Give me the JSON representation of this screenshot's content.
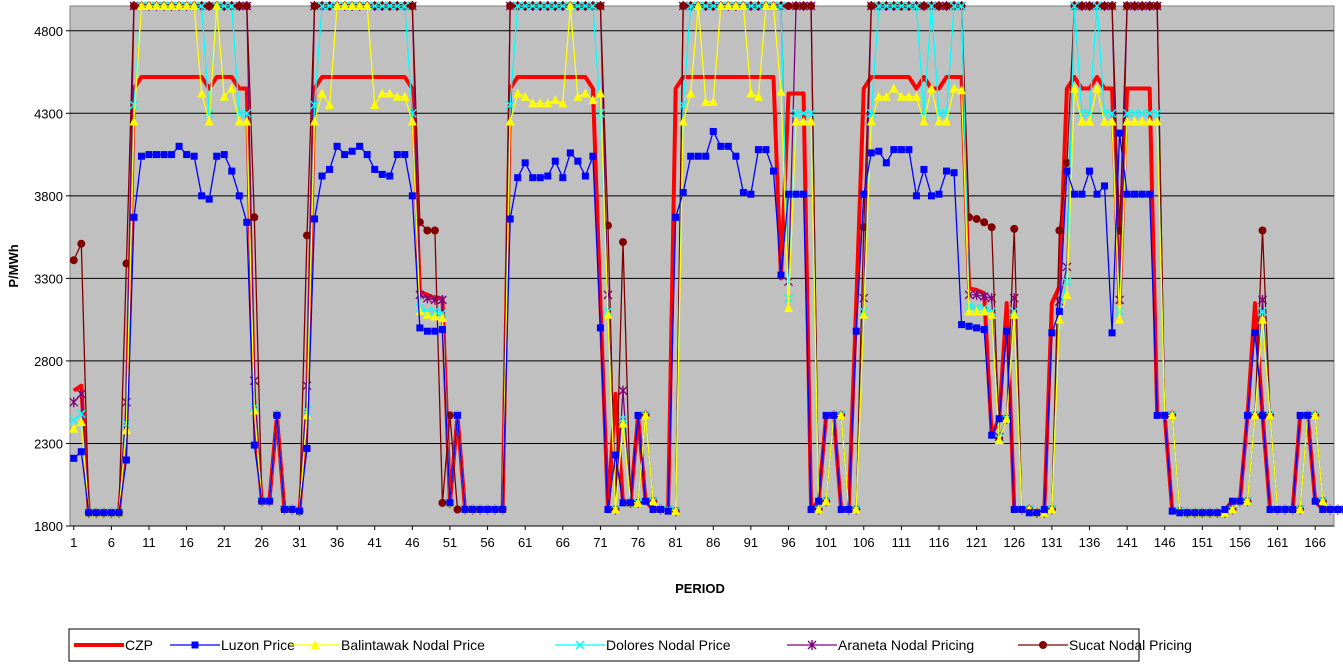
{
  "chart_data": {
    "type": "line",
    "title": "",
    "xlabel": "PERIOD",
    "ylabel": "P/MWh",
    "ylim": [
      1800,
      4950
    ],
    "yticks": [
      1800,
      2300,
      2800,
      3300,
      3800,
      4300,
      4800
    ],
    "xlim": [
      1,
      168
    ],
    "xticks": [
      1,
      6,
      11,
      16,
      21,
      26,
      31,
      36,
      41,
      46,
      51,
      56,
      61,
      66,
      71,
      76,
      81,
      86,
      91,
      96,
      101,
      106,
      111,
      116,
      121,
      126,
      131,
      136,
      141,
      146,
      151,
      156,
      161,
      166
    ],
    "grid": "horizontal",
    "background": "#c0c0c0",
    "legend_position": "bottom",
    "series": [
      {
        "name": "CZP",
        "color": "#ff0000",
        "marker": "none",
        "values": [
          2620,
          2650,
          1880,
          1880,
          1880,
          1880,
          1880,
          2400,
          4450,
          4520,
          4520,
          4520,
          4520,
          4520,
          4520,
          4520,
          4520,
          4520,
          4450,
          4520,
          4520,
          4520,
          4450,
          4450,
          2500,
          1950,
          1950,
          2470,
          1900,
          1900,
          1890,
          2500,
          4450,
          4520,
          4520,
          4520,
          4520,
          4520,
          4520,
          4520,
          4520,
          4520,
          4520,
          4520,
          4520,
          4450,
          3220,
          3200,
          3180,
          3180,
          1940,
          2470,
          1900,
          1900,
          1900,
          1900,
          1900,
          1900,
          4450,
          4520,
          4520,
          4520,
          4520,
          4520,
          4520,
          4520,
          4520,
          4520,
          4520,
          4450,
          3150,
          1900,
          2600,
          1940,
          1940,
          2470,
          1950,
          1900,
          1900,
          1890,
          4450,
          4520,
          4520,
          4520,
          4520,
          4520,
          4520,
          4520,
          4520,
          4520,
          4520,
          4520,
          4520,
          4520,
          3300,
          4420,
          4420,
          4420,
          1900,
          1950,
          2470,
          2470,
          1900,
          1900,
          3150,
          4450,
          4520,
          4520,
          4520,
          4520,
          4520,
          4520,
          4450,
          4520,
          4450,
          4450,
          4520,
          4520,
          4520,
          3240,
          3230,
          3210,
          2350,
          2450,
          3150,
          1900,
          1900,
          1880,
          1880,
          1900,
          3150,
          3250,
          4450,
          4520,
          4450,
          4450,
          4520,
          4450,
          4450,
          3150,
          4450,
          4450,
          4450,
          4450,
          2470,
          2470,
          1890,
          1880,
          1880,
          1880,
          1880,
          1880,
          1880,
          1900,
          1950,
          1950,
          2470,
          3150,
          2470,
          1900,
          1900,
          1900,
          1900,
          2470,
          2470,
          1950,
          1900,
          1900,
          1900,
          1900
        ]
      },
      {
        "name": "Luzon Price",
        "color": "#0000ff",
        "marker": "square",
        "values": [
          2210,
          2250,
          1880,
          1880,
          1880,
          1880,
          1880,
          2200,
          3670,
          4040,
          4050,
          4050,
          4050,
          4050,
          4100,
          4050,
          4040,
          3800,
          3780,
          4040,
          4050,
          3950,
          3800,
          3640,
          2290,
          1950,
          1950,
          2470,
          1900,
          1900,
          1890,
          2270,
          3660,
          3920,
          3960,
          4100,
          4050,
          4070,
          4100,
          4050,
          3960,
          3930,
          3920,
          4050,
          4050,
          3800,
          3000,
          2980,
          2980,
          2990,
          1940,
          2470,
          1900,
          1900,
          1900,
          1900,
          1900,
          1900,
          3660,
          3910,
          4000,
          3910,
          3910,
          3920,
          4010,
          3910,
          4060,
          4010,
          3920,
          4040,
          3000,
          1900,
          2230,
          1940,
          1940,
          2470,
          1950,
          1900,
          1900,
          1890,
          3670,
          3820,
          4040,
          4040,
          4040,
          4190,
          4100,
          4100,
          4040,
          3820,
          3810,
          4080,
          4080,
          3950,
          3320,
          3810,
          3810,
          3810,
          1900,
          1950,
          2470,
          2470,
          1900,
          1900,
          2980,
          3810,
          4060,
          4070,
          4000,
          4080,
          4080,
          4080,
          3800,
          3960,
          3800,
          3810,
          3950,
          3940,
          3020,
          3010,
          3000,
          2990,
          2350,
          2450,
          2980,
          1900,
          1900,
          1880,
          1880,
          1900,
          2970,
          3100,
          3950,
          3810,
          3810,
          3950,
          3810,
          3860,
          2970,
          4180,
          3810,
          3810,
          3810,
          3810,
          2470,
          2470,
          1890,
          1880,
          1880,
          1880,
          1880,
          1880,
          1880,
          1900,
          1950,
          1950,
          2470,
          2970,
          2470,
          1900,
          1900,
          1900,
          1900,
          2470,
          2470,
          1950,
          1900,
          1900,
          1900,
          1900
        ]
      },
      {
        "name": "Balintawak Nodal Price",
        "color": "#ffff00",
        "marker": "triangle",
        "values": [
          2390,
          2430,
          1880,
          1880,
          1880,
          1880,
          1880,
          2380,
          4250,
          4950,
          4950,
          4950,
          4950,
          4950,
          4950,
          4950,
          4950,
          4420,
          4250,
          4950,
          4400,
          4450,
          4250,
          4250,
          2500,
          1950,
          1950,
          2470,
          1900,
          1900,
          1890,
          2470,
          4250,
          4420,
          4350,
          4950,
          4950,
          4950,
          4950,
          4950,
          4350,
          4420,
          4420,
          4400,
          4400,
          4250,
          3100,
          3080,
          3070,
          3060,
          1940,
          2470,
          1900,
          1900,
          1900,
          1900,
          1900,
          1900,
          4250,
          4420,
          4400,
          4360,
          4360,
          4360,
          4380,
          4360,
          4950,
          4400,
          4420,
          4380,
          4420,
          3080,
          1900,
          2420,
          1940,
          1940,
          2470,
          1950,
          1900,
          1900,
          1890,
          4250,
          4420,
          4950,
          4370,
          4370,
          4950,
          4950,
          4950,
          4950,
          4420,
          4400,
          4950,
          4950,
          4430,
          3120,
          4250,
          4250,
          4250,
          1900,
          1950,
          2470,
          2470,
          1900,
          1900,
          3080,
          4250,
          4400,
          4400,
          4450,
          4400,
          4400,
          4400,
          4250,
          4450,
          4250,
          4250,
          4450,
          4440,
          3100,
          3100,
          3100,
          3080,
          2320,
          2450,
          3080,
          1900,
          1900,
          1880,
          1880,
          1900,
          3050,
          3200,
          4450,
          4250,
          4250,
          4450,
          4250,
          4250,
          3050,
          4250,
          4250,
          4250,
          4250,
          4250,
          2470,
          2470,
          1890,
          1880,
          1880,
          1880,
          1880,
          1880,
          1880,
          1900,
          1950,
          1950,
          2470,
          3050,
          2470,
          1900,
          1900,
          1900,
          1900,
          2470,
          2470,
          1950,
          1900,
          1900,
          1900,
          1900
        ]
      },
      {
        "name": "Dolores Nodal Price",
        "color": "#00ffff",
        "marker": "x",
        "values": [
          2440,
          2480,
          1880,
          1880,
          1880,
          1880,
          1880,
          2420,
          4350,
          4950,
          4950,
          4950,
          4950,
          4950,
          4950,
          4950,
          4950,
          4950,
          4300,
          4950,
          4950,
          4950,
          4300,
          4300,
          2520,
          1950,
          1950,
          2470,
          1900,
          1900,
          1890,
          2500,
          4350,
          4950,
          4950,
          4950,
          4950,
          4950,
          4950,
          4950,
          4950,
          4950,
          4950,
          4950,
          4950,
          4300,
          3120,
          3100,
          3100,
          3090,
          1940,
          2470,
          1900,
          1900,
          1900,
          1900,
          1900,
          1900,
          4350,
          4950,
          4950,
          4950,
          4950,
          4950,
          4950,
          4950,
          4950,
          4950,
          4950,
          4950,
          4300,
          3100,
          1900,
          2450,
          1940,
          1940,
          2470,
          1950,
          1900,
          1900,
          1890,
          4350,
          4950,
          4950,
          4950,
          4950,
          4950,
          4950,
          4950,
          4950,
          4950,
          4950,
          4950,
          4950,
          4950,
          3180,
          4300,
          4300,
          4300,
          1900,
          1950,
          2470,
          2470,
          1900,
          1900,
          3100,
          4300,
          4950,
          4950,
          4950,
          4950,
          4950,
          4950,
          4300,
          4950,
          4300,
          4300,
          4950,
          4950,
          3130,
          3120,
          3120,
          3100,
          2330,
          2450,
          3100,
          1900,
          1900,
          1880,
          1880,
          1900,
          3100,
          3280,
          4950,
          4300,
          4300,
          4950,
          4300,
          4300,
          3100,
          4300,
          4300,
          4300,
          4300,
          4300,
          2470,
          2470,
          1890,
          1880,
          1880,
          1880,
          1880,
          1880,
          1880,
          1900,
          1950,
          1950,
          2470,
          3100,
          2470,
          1900,
          1900,
          1900,
          1900,
          2470,
          2470,
          1950,
          1900,
          1900,
          1900,
          1900
        ]
      },
      {
        "name": "Araneta Nodal Pricing",
        "color": "#800080",
        "marker": "star",
        "values": [
          2550,
          2600,
          1880,
          1880,
          1880,
          1880,
          1880,
          2550,
          4950,
          4950,
          4950,
          4950,
          4950,
          4950,
          4950,
          4950,
          4950,
          4950,
          4950,
          4950,
          4950,
          4950,
          4950,
          4950,
          2680,
          1950,
          1950,
          2470,
          1900,
          1900,
          1890,
          2650,
          4950,
          4950,
          4950,
          4950,
          4950,
          4950,
          4950,
          4950,
          4950,
          4950,
          4950,
          4950,
          4950,
          4950,
          3200,
          3180,
          3170,
          3170,
          1940,
          2470,
          1900,
          1900,
          1900,
          1900,
          1900,
          1900,
          4950,
          4950,
          4950,
          4950,
          4950,
          4950,
          4950,
          4950,
          4950,
          4950,
          4950,
          4950,
          4950,
          3200,
          1900,
          2620,
          1940,
          1940,
          2470,
          1950,
          1900,
          1900,
          1890,
          4950,
          4950,
          4950,
          4950,
          4950,
          4950,
          4950,
          4950,
          4950,
          4950,
          4950,
          4950,
          4950,
          4950,
          3280,
          4950,
          4950,
          4950,
          1900,
          1950,
          2470,
          2470,
          1900,
          1900,
          3180,
          4950,
          4950,
          4950,
          4950,
          4950,
          4950,
          4950,
          4950,
          4950,
          4950,
          4950,
          4950,
          4950,
          3200,
          3200,
          3190,
          3180,
          2340,
          2450,
          3180,
          1900,
          1900,
          1880,
          1880,
          1900,
          3160,
          3370,
          4950,
          4950,
          4950,
          4950,
          4950,
          4950,
          3170,
          4950,
          4950,
          4950,
          4950,
          4950,
          2470,
          2470,
          1890,
          1880,
          1880,
          1880,
          1880,
          1880,
          1880,
          1900,
          1950,
          1950,
          2470,
          3170,
          2470,
          1900,
          1900,
          1900,
          1900,
          2470,
          2470,
          1950,
          1900,
          1900,
          1900,
          1900
        ]
      },
      {
        "name": "Sucat Nodal Pricing",
        "color": "#800000",
        "marker": "circle",
        "values": [
          3410,
          3510,
          1880,
          1880,
          1880,
          1880,
          1880,
          3390,
          4950,
          4950,
          4950,
          4950,
          4950,
          4950,
          4950,
          4950,
          4950,
          4950,
          4950,
          4950,
          4950,
          4950,
          4950,
          4950,
          3670,
          1950,
          1950,
          2470,
          1900,
          1900,
          1890,
          3560,
          4950,
          4950,
          4950,
          4950,
          4950,
          4950,
          4950,
          4950,
          4950,
          4950,
          4950,
          4950,
          4950,
          4950,
          3640,
          3590,
          3590,
          1940,
          2470,
          1900,
          1900,
          1900,
          1900,
          1900,
          1900,
          1900,
          4950,
          4950,
          4950,
          4950,
          4950,
          4950,
          4950,
          4950,
          4950,
          4950,
          4950,
          4950,
          4950,
          3620,
          1900,
          3520,
          1940,
          1940,
          2470,
          1950,
          1900,
          1900,
          1890,
          4950,
          4950,
          4950,
          4950,
          4950,
          4950,
          4950,
          4950,
          4950,
          4950,
          4950,
          4950,
          4950,
          4950,
          4950,
          4950,
          4950,
          4950,
          1900,
          1950,
          2470,
          2470,
          1900,
          1900,
          3610,
          4950,
          4950,
          4950,
          4950,
          4950,
          4950,
          4950,
          4950,
          4950,
          4950,
          4950,
          4950,
          4950,
          3670,
          3660,
          3640,
          3610,
          2330,
          2450,
          3600,
          1900,
          1900,
          1880,
          1880,
          1900,
          3590,
          4000,
          4950,
          4950,
          4950,
          4950,
          4950,
          4950,
          3590,
          4950,
          4950,
          4950,
          4950,
          4950,
          2470,
          2470,
          1890,
          1880,
          1880,
          1880,
          1880,
          1880,
          1880,
          1900,
          1950,
          1950,
          2470,
          3590,
          2470,
          1900,
          1900,
          1900,
          1900,
          2470,
          2470,
          1950,
          1900,
          1900,
          1900,
          1900
        ]
      }
    ]
  }
}
